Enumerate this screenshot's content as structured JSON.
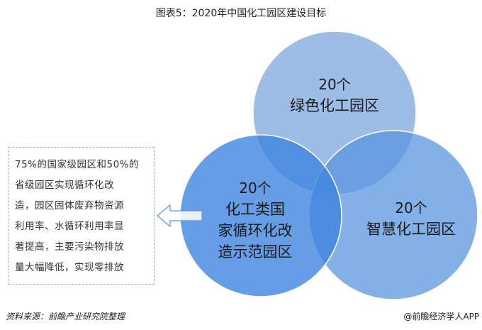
{
  "title": "图表5：2020年中国化工园区建设目标",
  "circles": [
    {
      "count": "20个",
      "name": "绿色化工园区",
      "color": "#9dbde6"
    },
    {
      "count": "20个",
      "name_lines": [
        "化工类国",
        "家循环化改",
        "造示范园区"
      ],
      "color": "#5b95e0"
    },
    {
      "count": "20个",
      "name": "智慧化工园区",
      "color": "#7aa7e3"
    }
  ],
  "note_lines": [
    "75%的国家级园区和50%的",
    "省级园区实现循环化改",
    "造，园区固体废弃物资源",
    "利用率、水循环利用率显",
    "著提高，主要污染物排放",
    "量大幅降低，实现零排放"
  ],
  "source": "资料来源：前瞻产业研究院整理",
  "brand": "@前瞻经济学人APP"
}
